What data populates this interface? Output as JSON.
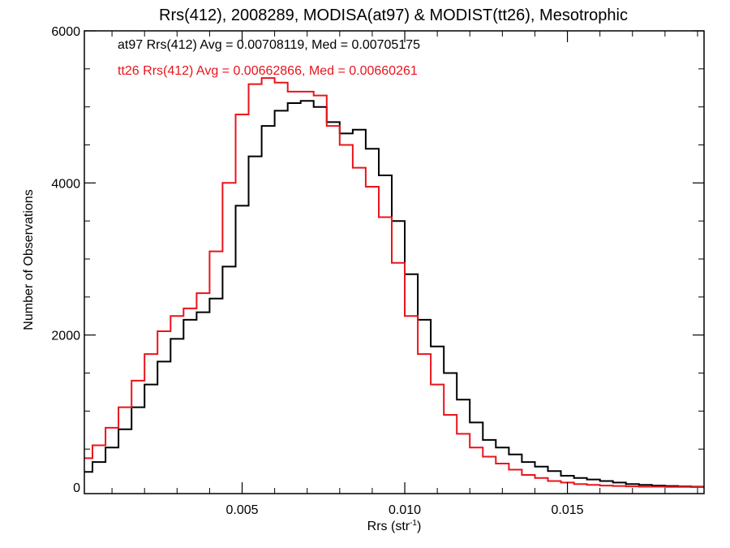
{
  "chart_data": {
    "type": "line",
    "title": "Rrs(412), 2008289, MODISA(at97) & MODIST(tt26), Mesotrophic",
    "xlabel": "Rrs (str",
    "xlabel_sup": "-1",
    "xlabel_end": ")",
    "ylabel": "Number of Observations",
    "xlim": [
      0.00015,
      0.0192
    ],
    "ylim": [
      0,
      6000
    ],
    "x_ticks": [
      0.005,
      0.01,
      0.015
    ],
    "x_tick_labels": [
      "0.005",
      "0.010",
      "0.015"
    ],
    "y_ticks": [
      0,
      2000,
      4000,
      6000
    ],
    "y_tick_labels": [
      "0",
      "2000",
      "4000",
      "6000"
    ],
    "grid": false,
    "legend_position": "top-left",
    "series": [
      {
        "name": "at97",
        "label": "at97 Rrs(412) Avg = 0.00708119, Med = 0.00705175",
        "color": "#000000",
        "x": [
          0.0002,
          0.0006,
          0.001,
          0.0014,
          0.0018,
          0.0022,
          0.0026,
          0.003,
          0.0034,
          0.0038,
          0.0042,
          0.0046,
          0.005,
          0.0054,
          0.0058,
          0.0062,
          0.0066,
          0.007,
          0.0074,
          0.0078,
          0.0082,
          0.0086,
          0.009,
          0.0094,
          0.0098,
          0.0102,
          0.0106,
          0.011,
          0.0114,
          0.0118,
          0.0122,
          0.0126,
          0.013,
          0.0134,
          0.0138,
          0.0142,
          0.0146,
          0.015,
          0.0154,
          0.0158,
          0.0162,
          0.0166,
          0.017,
          0.0174,
          0.0178,
          0.0182,
          0.0186,
          0.019
        ],
        "y": [
          200,
          330,
          520,
          760,
          1050,
          1350,
          1650,
          1950,
          2200,
          2300,
          2480,
          2900,
          3700,
          4350,
          4750,
          4950,
          5050,
          5080,
          5000,
          4800,
          4650,
          4700,
          4450,
          4100,
          3500,
          2800,
          2200,
          1850,
          1500,
          1150,
          850,
          620,
          520,
          430,
          330,
          270,
          210,
          150,
          120,
          100,
          80,
          60,
          40,
          30,
          20,
          15,
          10,
          5
        ]
      },
      {
        "name": "tt26",
        "label": "tt26 Rrs(412) Avg = 0.00662866, Med = 0.00660261",
        "color": "#e8141b",
        "x": [
          0.0002,
          0.0006,
          0.001,
          0.0014,
          0.0018,
          0.0022,
          0.0026,
          0.003,
          0.0034,
          0.0038,
          0.0042,
          0.0046,
          0.005,
          0.0054,
          0.0058,
          0.0062,
          0.0066,
          0.007,
          0.0074,
          0.0078,
          0.0082,
          0.0086,
          0.009,
          0.0094,
          0.0098,
          0.0102,
          0.0106,
          0.011,
          0.0114,
          0.0118,
          0.0122,
          0.0126,
          0.013,
          0.0134,
          0.0138,
          0.0142,
          0.0146,
          0.015,
          0.0154,
          0.0158,
          0.0162,
          0.0166,
          0.017,
          0.0174,
          0.0178,
          0.0182,
          0.0186,
          0.019
        ],
        "y": [
          380,
          550,
          780,
          1050,
          1400,
          1750,
          2050,
          2250,
          2350,
          2550,
          3100,
          4000,
          4900,
          5300,
          5380,
          5320,
          5200,
          5200,
          5150,
          4750,
          4500,
          4200,
          3950,
          3550,
          2950,
          2250,
          1750,
          1350,
          950,
          700,
          520,
          400,
          310,
          230,
          160,
          120,
          80,
          60,
          40,
          30,
          20,
          15,
          10,
          5,
          5,
          3,
          2,
          0
        ]
      }
    ]
  }
}
